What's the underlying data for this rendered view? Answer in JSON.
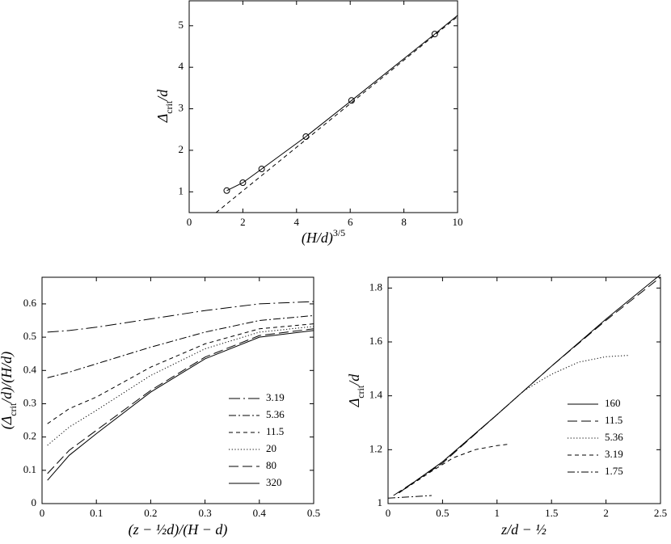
{
  "chart_data": [
    {
      "type": "line",
      "xlabel": [
        {
          "text": "(H/d)"
        },
        {
          "text": "3/5",
          "sup": true
        }
      ],
      "ylabel": [
        {
          "text": "Δ"
        },
        {
          "text": "crit",
          "sub": true
        },
        {
          "text": "/d"
        }
      ],
      "xlim": [
        0,
        10
      ],
      "ylim": [
        0.5,
        5.6
      ],
      "xticks": [
        0,
        2,
        4,
        6,
        8,
        10
      ],
      "yticks": [
        1,
        2,
        3,
        4,
        5
      ],
      "series": [
        {
          "style": "markers",
          "color": "#000",
          "x": [
            1.4,
            2,
            2.7,
            4.35,
            6.05,
            9.15
          ],
          "values": [
            1.03,
            1.22,
            1.55,
            2.33,
            3.2,
            4.8
          ]
        },
        {
          "style": "solid",
          "color": "#000",
          "x": [
            1.4,
            2,
            2.7,
            4.35,
            6.05,
            9.15,
            10
          ],
          "values": [
            1.03,
            1.22,
            1.55,
            2.33,
            3.2,
            4.8,
            5.25
          ]
        },
        {
          "style": "dashed",
          "color": "#000",
          "x": [
            1,
            10
          ],
          "values": [
            0.5,
            5.22
          ]
        }
      ]
    },
    {
      "type": "line",
      "xlabel": [
        {
          "text": "(z − ½d)/(H − d)"
        }
      ],
      "ylabel": [
        {
          "text": "(Δ"
        },
        {
          "text": "crit",
          "sub": true
        },
        {
          "text": "/d)/(H/d)"
        }
      ],
      "xlim": [
        0,
        0.5
      ],
      "ylim": [
        0,
        0.68
      ],
      "xticks": [
        0,
        0.1,
        0.2,
        0.3,
        0.4,
        0.5
      ],
      "yticks": [
        0,
        0.1,
        0.2,
        0.3,
        0.4,
        0.5,
        0.6
      ],
      "legend": "center right",
      "series": [
        {
          "name": "3.19",
          "style": "longdashdot",
          "color": "#000",
          "x": [
            0.01,
            0.05,
            0.1,
            0.2,
            0.3,
            0.4,
            0.5
          ],
          "values": [
            0.515,
            0.52,
            0.53,
            0.555,
            0.58,
            0.6,
            0.607
          ]
        },
        {
          "name": "5.36",
          "style": "dashdot",
          "color": "#000",
          "x": [
            0.01,
            0.05,
            0.1,
            0.2,
            0.3,
            0.4,
            0.5
          ],
          "values": [
            0.378,
            0.395,
            0.42,
            0.47,
            0.515,
            0.55,
            0.565
          ]
        },
        {
          "name": "11.5",
          "style": "dashed",
          "color": "#000",
          "x": [
            0.01,
            0.05,
            0.1,
            0.2,
            0.3,
            0.4,
            0.5
          ],
          "values": [
            0.24,
            0.285,
            0.32,
            0.41,
            0.48,
            0.525,
            0.54
          ]
        },
        {
          "name": "20",
          "style": "dotted",
          "color": "#000",
          "x": [
            0.01,
            0.05,
            0.1,
            0.2,
            0.3,
            0.4,
            0.5
          ],
          "values": [
            0.175,
            0.23,
            0.28,
            0.385,
            0.465,
            0.515,
            0.532
          ]
        },
        {
          "name": "80",
          "style": "longdash",
          "color": "#000",
          "x": [
            0.01,
            0.05,
            0.1,
            0.2,
            0.3,
            0.4,
            0.5
          ],
          "values": [
            0.09,
            0.16,
            0.22,
            0.34,
            0.44,
            0.505,
            0.525
          ]
        },
        {
          "name": "320",
          "style": "solid",
          "color": "#000",
          "x": [
            0.01,
            0.05,
            0.1,
            0.2,
            0.3,
            0.4,
            0.5
          ],
          "values": [
            0.07,
            0.145,
            0.21,
            0.335,
            0.435,
            0.5,
            0.52
          ]
        }
      ]
    },
    {
      "type": "line",
      "xlabel": [
        {
          "text": "z/d − ½"
        }
      ],
      "ylabel": [
        {
          "text": "Δ"
        },
        {
          "text": "crit",
          "sub": true
        },
        {
          "text": "/d"
        }
      ],
      "xlim": [
        0,
        2.5
      ],
      "ylim": [
        1,
        1.84
      ],
      "xticks": [
        0,
        0.5,
        1,
        1.5,
        2,
        2.5
      ],
      "yticks": [
        1,
        1.2,
        1.4,
        1.6,
        1.8
      ],
      "legend": "lower right",
      "series": [
        {
          "name": "160",
          "style": "solid",
          "color": "#000",
          "x": [
            0.1,
            0.5,
            1,
            1.5,
            2,
            2.5
          ],
          "values": [
            1.04,
            1.155,
            1.33,
            1.51,
            1.685,
            1.85
          ]
        },
        {
          "name": "11.5",
          "style": "longdash",
          "color": "#000",
          "x": [
            0.05,
            0.5,
            1,
            1.5,
            2,
            2.5
          ],
          "values": [
            1.03,
            1.15,
            1.33,
            1.51,
            1.68,
            1.84
          ]
        },
        {
          "name": "5.36",
          "style": "dotted",
          "color": "#000",
          "x": [
            0.1,
            0.5,
            1,
            1.25,
            1.5,
            1.75,
            2,
            2.2
          ],
          "values": [
            1.04,
            1.155,
            1.33,
            1.42,
            1.48,
            1.525,
            1.545,
            1.55
          ]
        },
        {
          "name": "3.19",
          "style": "dashed",
          "color": "#000",
          "x": [
            0.1,
            0.4,
            0.6,
            0.8,
            1.0,
            1.1
          ],
          "values": [
            1.04,
            1.12,
            1.17,
            1.2,
            1.215,
            1.22
          ]
        },
        {
          "name": "1.75",
          "style": "dashdot",
          "color": "#000",
          "x": [
            0,
            0.2,
            0.4
          ],
          "values": [
            1.02,
            1.025,
            1.03
          ]
        }
      ]
    }
  ]
}
